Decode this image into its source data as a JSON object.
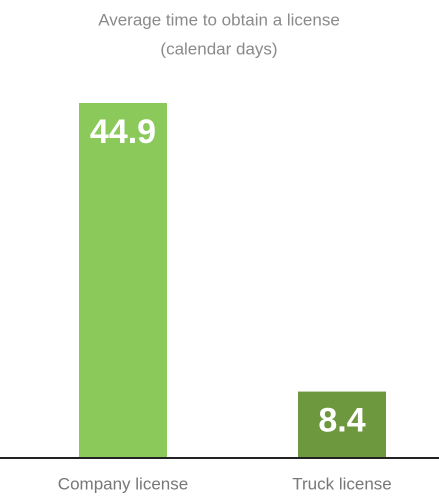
{
  "chart_data": {
    "type": "bar",
    "title": "Average time to obtain a license",
    "subtitle": "(calendar days)",
    "categories": [
      "Company license",
      "Truck license"
    ],
    "values": [
      44.9,
      8.4
    ],
    "colors": [
      "#8cc95b",
      "#6e983e"
    ]
  }
}
